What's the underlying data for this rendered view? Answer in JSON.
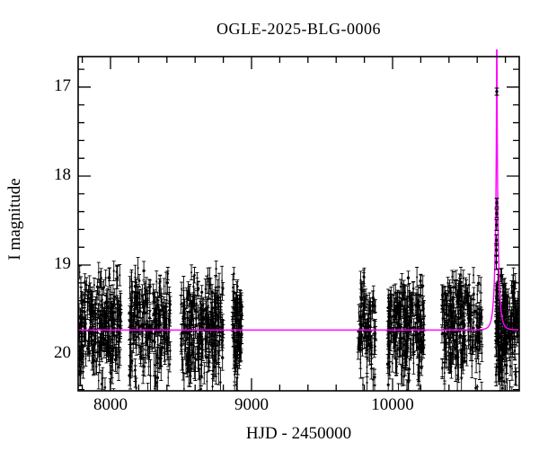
{
  "title": "OGLE-2025-BLG-0006",
  "axes": {
    "xlabel": "HJD - 2450000",
    "ylabel": "I magnitude",
    "x_major_ticks": [
      8000,
      9000,
      10000
    ],
    "x_minor_step": 200,
    "y_major_ticks": [
      17,
      18,
      19,
      20
    ],
    "y_minor_step": 0.2
  },
  "chart_data": {
    "type": "scatter",
    "title": "OGLE-2025-BLG-0006",
    "xlabel": "HJD - 2450000",
    "ylabel": "I magnitude",
    "xlim": [
      7770.7,
      10898
    ],
    "ylim": [
      20.414,
      16.657
    ],
    "y_inverted": true,
    "grid": false,
    "legend": "none",
    "marker_color": "#000000",
    "model_color": "#ff00ff",
    "background_color": "#ffffff",
    "baseline_mag": 19.73,
    "model": {
      "kind": "paczynski-point-lens",
      "t0": 10739,
      "tE": 25,
      "u0": 0.01
    },
    "seed": 1234567,
    "seasons": [
      {
        "t_start": 7775,
        "t_end": 8075,
        "n": 270,
        "mag_mean": 19.7,
        "mag_sd": 0.3,
        "mag_min": 19.03,
        "mag_max": 20.6
      },
      {
        "t_start": 8135,
        "t_end": 8425,
        "n": 250,
        "mag_mean": 19.69,
        "mag_sd": 0.3,
        "mag_min": 19.03,
        "mag_max": 20.6
      },
      {
        "t_start": 8500,
        "t_end": 8800,
        "n": 270,
        "mag_mean": 19.7,
        "mag_sd": 0.3,
        "mag_min": 19.03,
        "mag_max": 20.6
      },
      {
        "t_start": 8865,
        "t_end": 8935,
        "n": 85,
        "mag_mean": 19.72,
        "mag_sd": 0.3,
        "mag_min": 19.05,
        "mag_max": 20.6
      },
      {
        "t_start": 9755,
        "t_end": 9880,
        "n": 100,
        "mag_mean": 19.72,
        "mag_sd": 0.29,
        "mag_min": 19.1,
        "mag_max": 20.6
      },
      {
        "t_start": 9960,
        "t_end": 10225,
        "n": 235,
        "mag_mean": 19.71,
        "mag_sd": 0.3,
        "mag_min": 19.08,
        "mag_max": 20.6
      },
      {
        "t_start": 10350,
        "t_end": 10635,
        "n": 245,
        "mag_mean": 19.71,
        "mag_sd": 0.3,
        "mag_min": 19.1,
        "mag_max": 20.6
      },
      {
        "t_start": 10732,
        "t_end": 10893,
        "n": 215,
        "mag_mean": 19.7,
        "mag_sd": 0.3,
        "mag_min": 19.08,
        "mag_max": 20.6
      }
    ],
    "event_points": [
      {
        "t": 10739.0,
        "mag": 17.05,
        "sig": 0.04
      },
      {
        "t": 10738.6,
        "mag": 18.3,
        "sig": 0.05
      },
      {
        "t": 10738.2,
        "mag": 18.42,
        "sig": 0.05
      },
      {
        "t": 10737.8,
        "mag": 18.55,
        "sig": 0.06
      },
      {
        "t": 10737.0,
        "mag": 18.72,
        "sig": 0.06
      },
      {
        "t": 10736.4,
        "mag": 18.83,
        "sig": 0.07
      },
      {
        "t": 10735.6,
        "mag": 18.97,
        "sig": 0.08
      }
    ]
  }
}
